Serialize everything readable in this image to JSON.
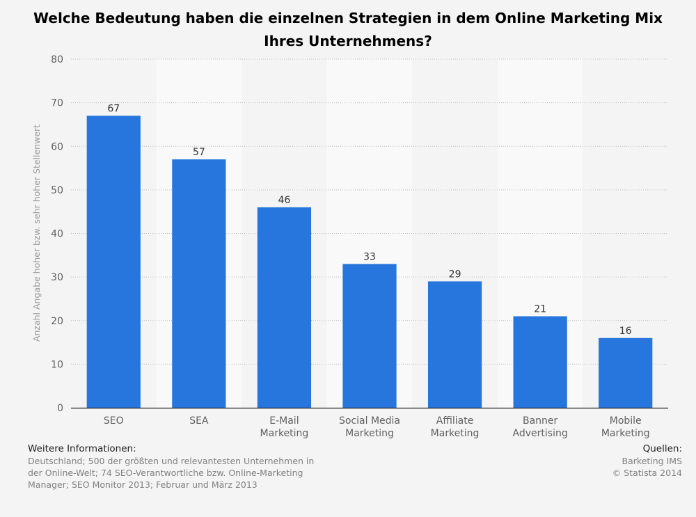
{
  "chart_data": {
    "type": "bar",
    "title": "Welche Bedeutung haben die einzelnen Strategien in dem Online Marketing Mix Ihres Unternehmens?",
    "xlabel": "",
    "ylabel": "Anzahl Angabe hoher bzw. sehr hoher Stellenwert",
    "categories": [
      [
        "SEO"
      ],
      [
        "SEA"
      ],
      [
        "E-Mail",
        "Marketing"
      ],
      [
        "Social Media",
        "Marketing"
      ],
      [
        "Affiliate",
        "Marketing"
      ],
      [
        "Banner",
        "Advertising"
      ],
      [
        "Mobile",
        "Marketing"
      ]
    ],
    "values": [
      67,
      57,
      46,
      33,
      29,
      21,
      16
    ],
    "ylim": [
      0,
      80
    ],
    "yticks": [
      0,
      10,
      20,
      30,
      40,
      50,
      60,
      70,
      80
    ],
    "grid": "horizontal dotted",
    "bar_color": "#2776dd",
    "band_colors": [
      "#f4f4f4",
      "#f9f9f9"
    ]
  },
  "footer": {
    "info_heading": "Weitere Informationen:",
    "info_text": "Deutschland; 500 der größten und relevantesten Unternehmen in der Online-Welt; 74 SEO-Verantwortliche bzw. Online-Marketing Manager; SEO Monitor 2013; Februar und März 2013",
    "sources_heading": "Quellen:",
    "sources": [
      "Barketing IMS",
      "© Statista 2014"
    ]
  }
}
